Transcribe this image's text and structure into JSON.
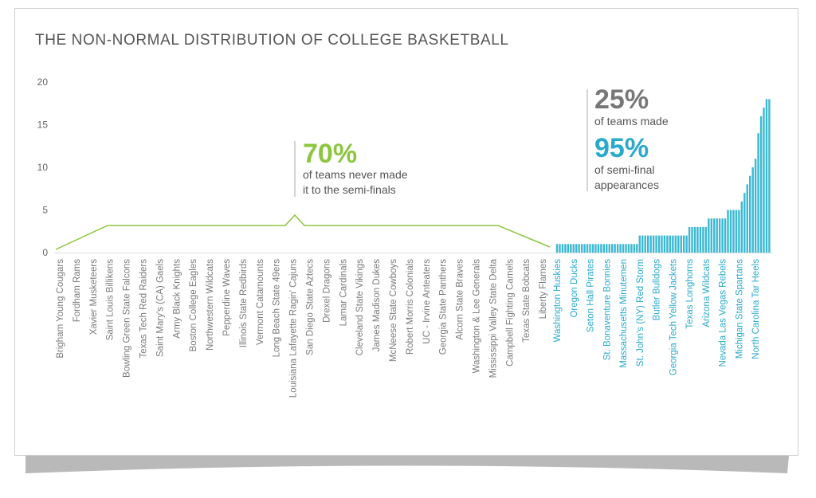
{
  "chart_data": {
    "type": "bar",
    "title": "THE NON-NORMAL DISTRIBUTION OF COLLEGE BASKETBALL",
    "ylim": [
      0,
      20
    ],
    "yticks": [
      0,
      5,
      10,
      15,
      20
    ],
    "grid": false,
    "color": "#3bb8d3",
    "zero_label_color": "#7a7a7a",
    "label_color": "#29aacc",
    "annotations": [
      {
        "big": "70%",
        "big_color": "#8cc63f",
        "lines": [
          "of teams never made",
          "it to the semi-finals"
        ]
      },
      {
        "big": "25%",
        "big_color": "#777777",
        "lines": [
          "of teams made"
        ]
      },
      {
        "big": "95%",
        "big_color": "#29aacc",
        "lines": [
          "of semi-final",
          "appearances"
        ]
      }
    ],
    "categories": [
      "Brigham Young Cougars",
      "Fordham Rams",
      "Xavier Musketeers",
      "Saint Louis Billikens",
      "Bowling Green State Falcons",
      "Texas Tech Red Raiders",
      "Saint Mary's (CA) Gaels",
      "Army Black Knights",
      "Boston College Eagles",
      "Northwestern Wildcats",
      "Pepperdine Waves",
      "Illinois State Redbirds",
      "Vermont Catamounts",
      "Long Beach State 49ers",
      "Louisiana Lafayette Ragin' Cajuns",
      "San Diego State Aztecs",
      "Drexel Dragons",
      "Lamar Cardinals",
      "Cleveland State Vikings",
      "James Madison Dukes",
      "McNeese State Cowboys",
      "Robert Morris Colonials",
      "UC - Irvine Anteaters",
      "Georgia State Panthers",
      "Alcorn State Braves",
      "Washington & Lee Generals",
      "Mississippi Valley State Delta",
      "Campbell Fighting Camels",
      "Texas State Bobcats",
      "Liberty Flames",
      "Washington Huskies",
      null,
      null,
      null,
      null,
      null,
      "Oregon Ducks",
      null,
      null,
      null,
      null,
      null,
      "Seton Hall Pirates",
      null,
      null,
      null,
      null,
      null,
      "St. Bonaventure Bonnies",
      null,
      null,
      null,
      null,
      null,
      "Massachusetts Minutemen",
      null,
      null,
      null,
      null,
      null,
      "St. John's (NY) Red Storm",
      null,
      null,
      null,
      null,
      null,
      "Butler Bulldogs",
      null,
      null,
      null,
      null,
      null,
      "Georgia Tech Yellow Jackets",
      null,
      null,
      null,
      null,
      null,
      "Texas Longhorns",
      null,
      null,
      null,
      null,
      null,
      "Arizona Wildcats",
      null,
      null,
      null,
      null,
      null,
      "Nevada Las Vegas Rebels",
      null,
      null,
      null,
      null,
      null,
      "Michigan State Spartans",
      null,
      null,
      null,
      null,
      null,
      "North Carolina Tar Heels",
      null,
      null,
      null,
      null,
      null
    ],
    "values": [
      0,
      0,
      0,
      0,
      0,
      0,
      0,
      0,
      0,
      0,
      0,
      0,
      0,
      0,
      0,
      0,
      0,
      0,
      0,
      0,
      0,
      0,
      0,
      0,
      0,
      0,
      0,
      0,
      0,
      0,
      1,
      1,
      1,
      1,
      1,
      1,
      1,
      1,
      1,
      1,
      1,
      1,
      1,
      1,
      1,
      1,
      1,
      1,
      1,
      1,
      1,
      1,
      1,
      1,
      1,
      1,
      1,
      1,
      1,
      1,
      2,
      2,
      2,
      2,
      2,
      2,
      2,
      2,
      2,
      2,
      2,
      2,
      2,
      2,
      2,
      2,
      2,
      2,
      3,
      3,
      3,
      3,
      3,
      3,
      3,
      4,
      4,
      4,
      4,
      4,
      4,
      4,
      5,
      5,
      5,
      5,
      5,
      6,
      7,
      8,
      9,
      10,
      11,
      14,
      16,
      17,
      18,
      18
    ]
  }
}
